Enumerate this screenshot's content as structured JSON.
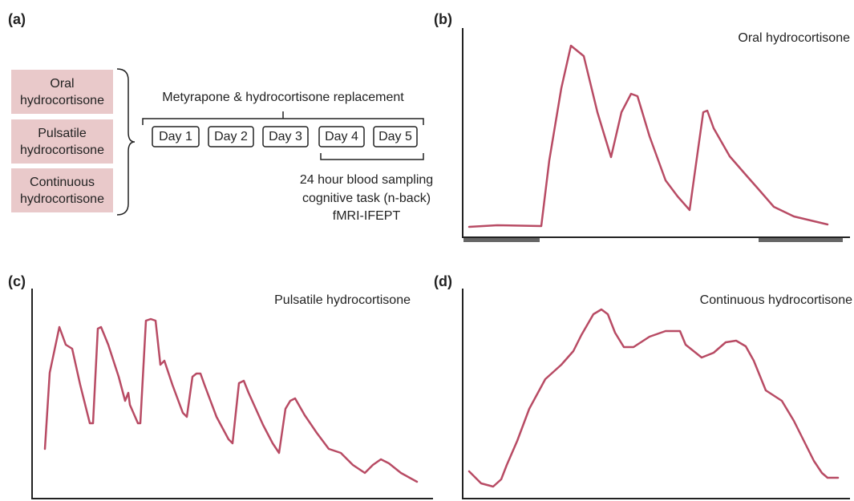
{
  "panels": [
    {
      "label": "(a)",
      "conditions": [
        "Oral hydrocortisone",
        "Pulsatile hydrocortisone",
        "Continuous hydrocortisone"
      ],
      "protocol": "Metyrapone & hydrocortisone replacement",
      "days": [
        "Day 1",
        "Day 2",
        "Day 3",
        "Day 4",
        "Day 5"
      ],
      "measures": [
        "24 hour blood sampling",
        "cognitive task (n-back)",
        "fMRI-IFEPT"
      ]
    },
    {
      "label": "(b)",
      "title": "Oral hydrocortisone"
    },
    {
      "label": "(c)",
      "title": "Pulsatile hydrocortisone"
    },
    {
      "label": "(d)",
      "title": "Continuous hydrocortisone"
    }
  ]
}
